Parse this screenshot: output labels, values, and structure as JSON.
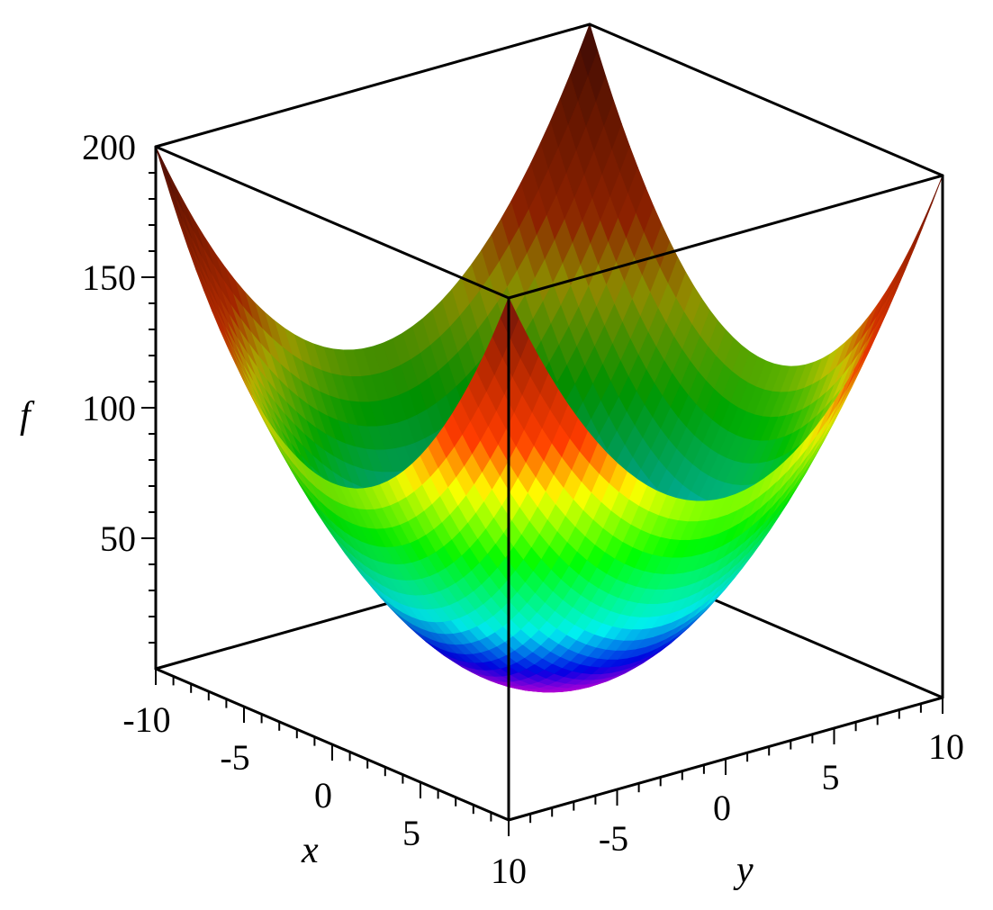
{
  "chart_data": {
    "type": "surface3d",
    "function": "x^2 + y^2",
    "xlabel": "x",
    "ylabel": "y",
    "zlabel": "f",
    "xlim": [
      -10,
      10
    ],
    "ylim": [
      -10,
      10
    ],
    "zlim": [
      0,
      200
    ],
    "x_ticks": [
      "-10",
      "-5",
      "0",
      "5",
      "10"
    ],
    "y_ticks": [
      "-5",
      "0",
      "5",
      "10"
    ],
    "z_ticks": [
      "50",
      "100",
      "150",
      "200"
    ],
    "surface_grid": {
      "x": [
        -10,
        -5,
        0,
        5,
        10
      ],
      "y": [
        -10,
        -5,
        0,
        5,
        10
      ],
      "z": [
        [
          200,
          125,
          100,
          125,
          200
        ],
        [
          125,
          50,
          25,
          50,
          125
        ],
        [
          100,
          25,
          0,
          25,
          100
        ],
        [
          125,
          50,
          25,
          50,
          125
        ],
        [
          200,
          125,
          100,
          125,
          200
        ]
      ]
    },
    "colormap": "rainbow (magenta at 0 → blue → cyan → green → yellow → red/brown at max)",
    "box": true
  }
}
